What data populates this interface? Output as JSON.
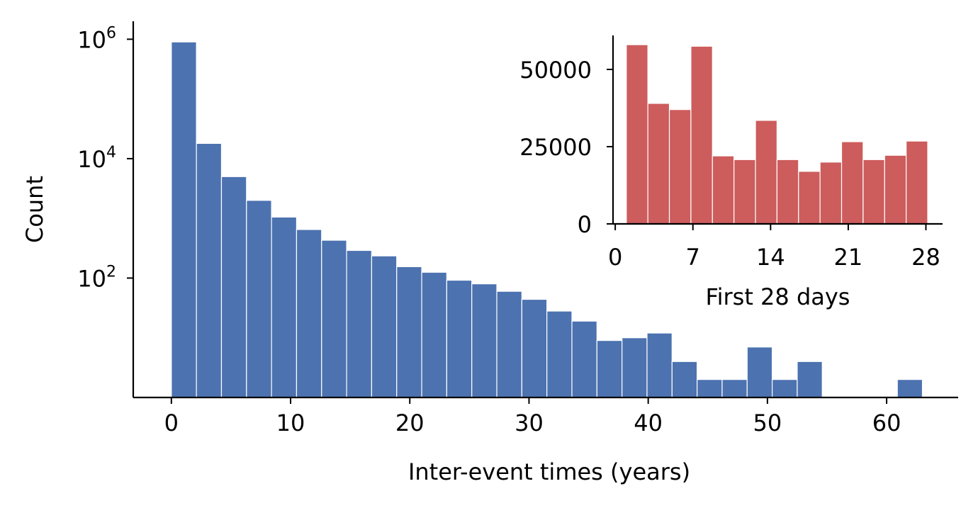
{
  "chart_data": [
    {
      "type": "bar",
      "title": "",
      "xlabel": "Inter-event times (years)",
      "ylabel": "Count",
      "yscale": "log",
      "xlim": [
        -3.2,
        66
      ],
      "ylim": [
        1,
        2000000
      ],
      "bin_width": 2.1,
      "color": "#4c72b0",
      "xticks": [
        0,
        10,
        20,
        30,
        40,
        50,
        60
      ],
      "yticks": [
        {
          "value": 100,
          "base": "10",
          "exp": "2"
        },
        {
          "value": 10000,
          "base": "10",
          "exp": "4"
        },
        {
          "value": 1000000,
          "base": "10",
          "exp": "6"
        }
      ],
      "bins": [
        {
          "start": 0.0,
          "value": 900000
        },
        {
          "start": 2.1,
          "value": 18000
        },
        {
          "start": 4.2,
          "value": 5000
        },
        {
          "start": 6.3,
          "value": 2000
        },
        {
          "start": 8.4,
          "value": 1050
        },
        {
          "start": 10.5,
          "value": 650
        },
        {
          "start": 12.6,
          "value": 430
        },
        {
          "start": 14.7,
          "value": 290
        },
        {
          "start": 16.8,
          "value": 235
        },
        {
          "start": 18.9,
          "value": 155
        },
        {
          "start": 21.0,
          "value": 125
        },
        {
          "start": 23.1,
          "value": 92
        },
        {
          "start": 25.2,
          "value": 80
        },
        {
          "start": 27.3,
          "value": 60
        },
        {
          "start": 29.4,
          "value": 44
        },
        {
          "start": 31.5,
          "value": 28
        },
        {
          "start": 33.6,
          "value": 19
        },
        {
          "start": 35.7,
          "value": 9
        },
        {
          "start": 37.8,
          "value": 10
        },
        {
          "start": 39.9,
          "value": 12
        },
        {
          "start": 42.0,
          "value": 4
        },
        {
          "start": 44.1,
          "value": 2
        },
        {
          "start": 46.2,
          "value": 2
        },
        {
          "start": 48.3,
          "value": 7
        },
        {
          "start": 50.4,
          "value": 2
        },
        {
          "start": 52.5,
          "value": 4
        },
        {
          "start": 54.6,
          "value": 0
        },
        {
          "start": 56.7,
          "value": 0
        },
        {
          "start": 58.8,
          "value": 0
        },
        {
          "start": 60.9,
          "value": 2
        }
      ]
    },
    {
      "type": "bar",
      "title": "",
      "inset": true,
      "xlabel": "First 28 days",
      "ylabel": "",
      "yscale": "linear",
      "xlim": [
        -0.2,
        29.5
      ],
      "ylim": [
        0,
        61000
      ],
      "bin_width": 1.94,
      "color": "#cd5c5c",
      "xticks": [
        0,
        7,
        14,
        21,
        28
      ],
      "yticks": [
        0,
        25000,
        50000
      ],
      "bins": [
        {
          "start": 1.0,
          "value": 58000
        },
        {
          "start": 2.94,
          "value": 39000
        },
        {
          "start": 4.88,
          "value": 37000
        },
        {
          "start": 6.82,
          "value": 57500
        },
        {
          "start": 8.76,
          "value": 22000
        },
        {
          "start": 10.7,
          "value": 20800
        },
        {
          "start": 12.64,
          "value": 33500
        },
        {
          "start": 14.58,
          "value": 20800
        },
        {
          "start": 16.52,
          "value": 17000
        },
        {
          "start": 18.46,
          "value": 20000
        },
        {
          "start": 20.4,
          "value": 26600
        },
        {
          "start": 22.34,
          "value": 20800
        },
        {
          "start": 24.28,
          "value": 22200
        },
        {
          "start": 26.22,
          "value": 26800
        }
      ]
    }
  ]
}
